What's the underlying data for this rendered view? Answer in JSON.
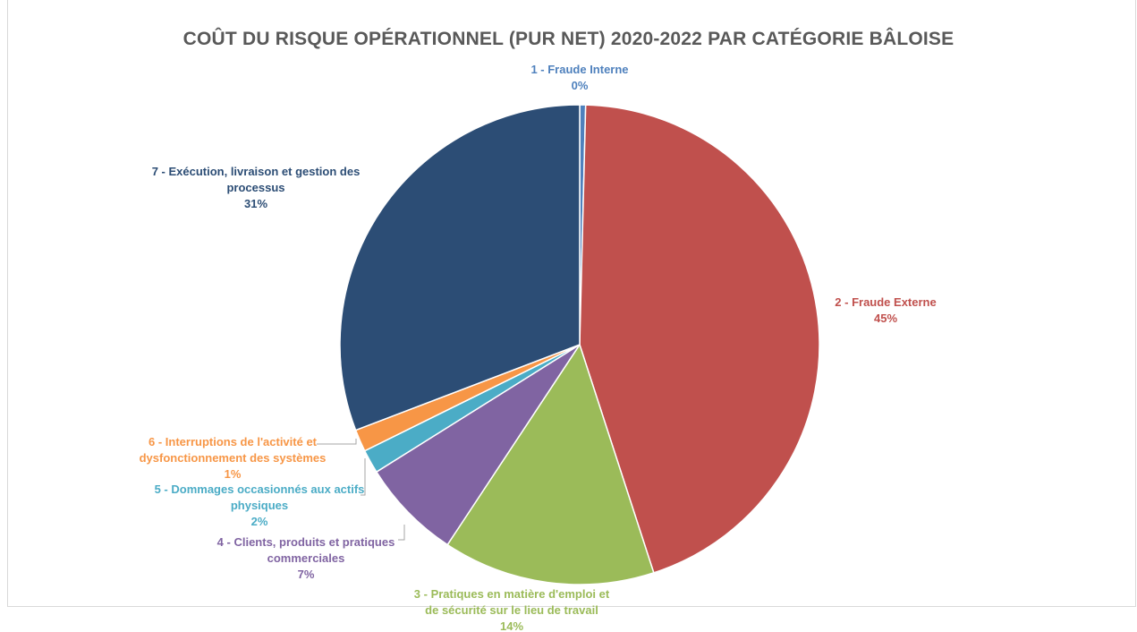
{
  "chart_data": {
    "type": "pie",
    "title": "COÛT DU RISQUE OPÉRATIONNEL (PUR NET) 2020-2022 PAR CATÉGORIE BÂLOISE",
    "legend": "none",
    "slices": [
      {
        "label": [
          "1 - Fraude Interne"
        ],
        "value": 0.4,
        "pct_label": "0%",
        "color": "#4F81BD"
      },
      {
        "label": [
          "2 - Fraude Externe"
        ],
        "value": 44.6,
        "pct_label": "45%",
        "color": "#C0504D"
      },
      {
        "label": [
          "3 - Pratiques en matière d'emploi et",
          "de sécurité sur le lieu de travail"
        ],
        "value": 14.3,
        "pct_label": "14%",
        "color": "#9BBB59"
      },
      {
        "label": [
          "4 - Clients, produits et pratiques",
          "commerciales"
        ],
        "value": 6.8,
        "pct_label": "7%",
        "color": "#8064A2"
      },
      {
        "label": [
          "5 - Dommages occasionnés aux actifs",
          "physiques"
        ],
        "value": 1.6,
        "pct_label": "2%",
        "color": "#4BACC6"
      },
      {
        "label": [
          "6 - Interruptions de l'activité et",
          "dysfonctionnement des systèmes"
        ],
        "value": 1.5,
        "pct_label": "1%",
        "color": "#F79646"
      },
      {
        "label": [
          "7 - Exécution, livraison et gestion des",
          "processus"
        ],
        "value": 30.8,
        "pct_label": "31%",
        "color": "#2C4D75"
      }
    ]
  }
}
